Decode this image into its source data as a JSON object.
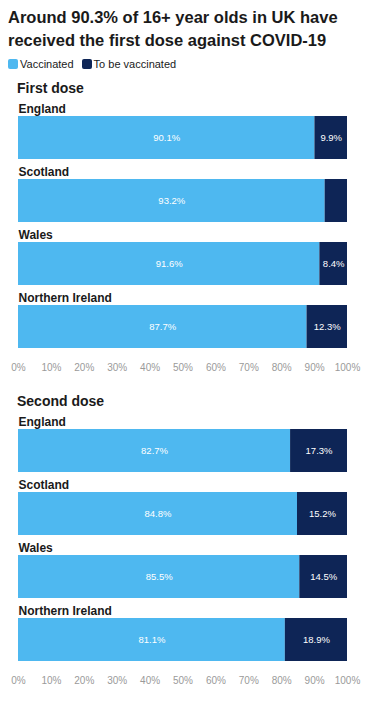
{
  "title": "Around 90.3% of 16+ year olds in UK have received the first dose against COVID-19",
  "chart_data": [
    {
      "type": "bar",
      "title": "First dose",
      "orientation": "horizontal",
      "stacked": true,
      "data_labels": true,
      "legend": "top-left",
      "categories": [
        "England",
        "Scotland",
        "Wales",
        "Northern Ireland"
      ],
      "series": [
        {
          "name": "Vaccinated",
          "color": "#4eb8f0",
          "values": [
            90.1,
            93.2,
            91.6,
            87.7
          ],
          "value_labels": [
            "90.1%",
            "93.2%",
            "91.6%",
            "87.7%"
          ]
        },
        {
          "name": "To be vaccinated",
          "color": "#0e2556",
          "values": [
            9.9,
            6.8,
            8.4,
            12.3
          ],
          "value_labels": [
            "9.9%",
            null,
            "8.4%",
            "12.3%"
          ]
        }
      ],
      "xlim": [
        0,
        100
      ],
      "xticks": [
        {
          "value": 0,
          "label": "0%"
        },
        {
          "value": 10,
          "label": "10%"
        },
        {
          "value": 20,
          "label": "20%"
        },
        {
          "value": 30,
          "label": "30%"
        },
        {
          "value": 40,
          "label": "40%"
        },
        {
          "value": 50,
          "label": "50%"
        },
        {
          "value": 60,
          "label": "60%"
        },
        {
          "value": 70,
          "label": "70%"
        },
        {
          "value": 80,
          "label": "80%"
        },
        {
          "value": 90,
          "label": "90%"
        },
        {
          "value": 100,
          "label": "100%"
        }
      ]
    },
    {
      "type": "bar",
      "title": "Second dose",
      "orientation": "horizontal",
      "stacked": true,
      "data_labels": true,
      "categories": [
        "England",
        "Scotland",
        "Wales",
        "Northern Ireland"
      ],
      "series": [
        {
          "name": "Vaccinated",
          "color": "#4eb8f0",
          "values": [
            82.7,
            84.8,
            85.5,
            81.1
          ],
          "value_labels": [
            "82.7%",
            "84.8%",
            "85.5%",
            "81.1%"
          ]
        },
        {
          "name": "To be vaccinated",
          "color": "#0e2556",
          "values": [
            17.3,
            15.2,
            14.5,
            18.9
          ],
          "value_labels": [
            "17.3%",
            "15.2%",
            "14.5%",
            "18.9%"
          ]
        }
      ],
      "xlim": [
        0,
        100
      ],
      "xticks": [
        {
          "value": 0,
          "label": "0%"
        },
        {
          "value": 10,
          "label": "10%"
        },
        {
          "value": 20,
          "label": "20%"
        },
        {
          "value": 30,
          "label": "30%"
        },
        {
          "value": 40,
          "label": "40%"
        },
        {
          "value": 50,
          "label": "50%"
        },
        {
          "value": 60,
          "label": "60%"
        },
        {
          "value": 70,
          "label": "70%"
        },
        {
          "value": 80,
          "label": "80%"
        },
        {
          "value": 90,
          "label": "90%"
        },
        {
          "value": 100,
          "label": "100%"
        }
      ]
    }
  ]
}
